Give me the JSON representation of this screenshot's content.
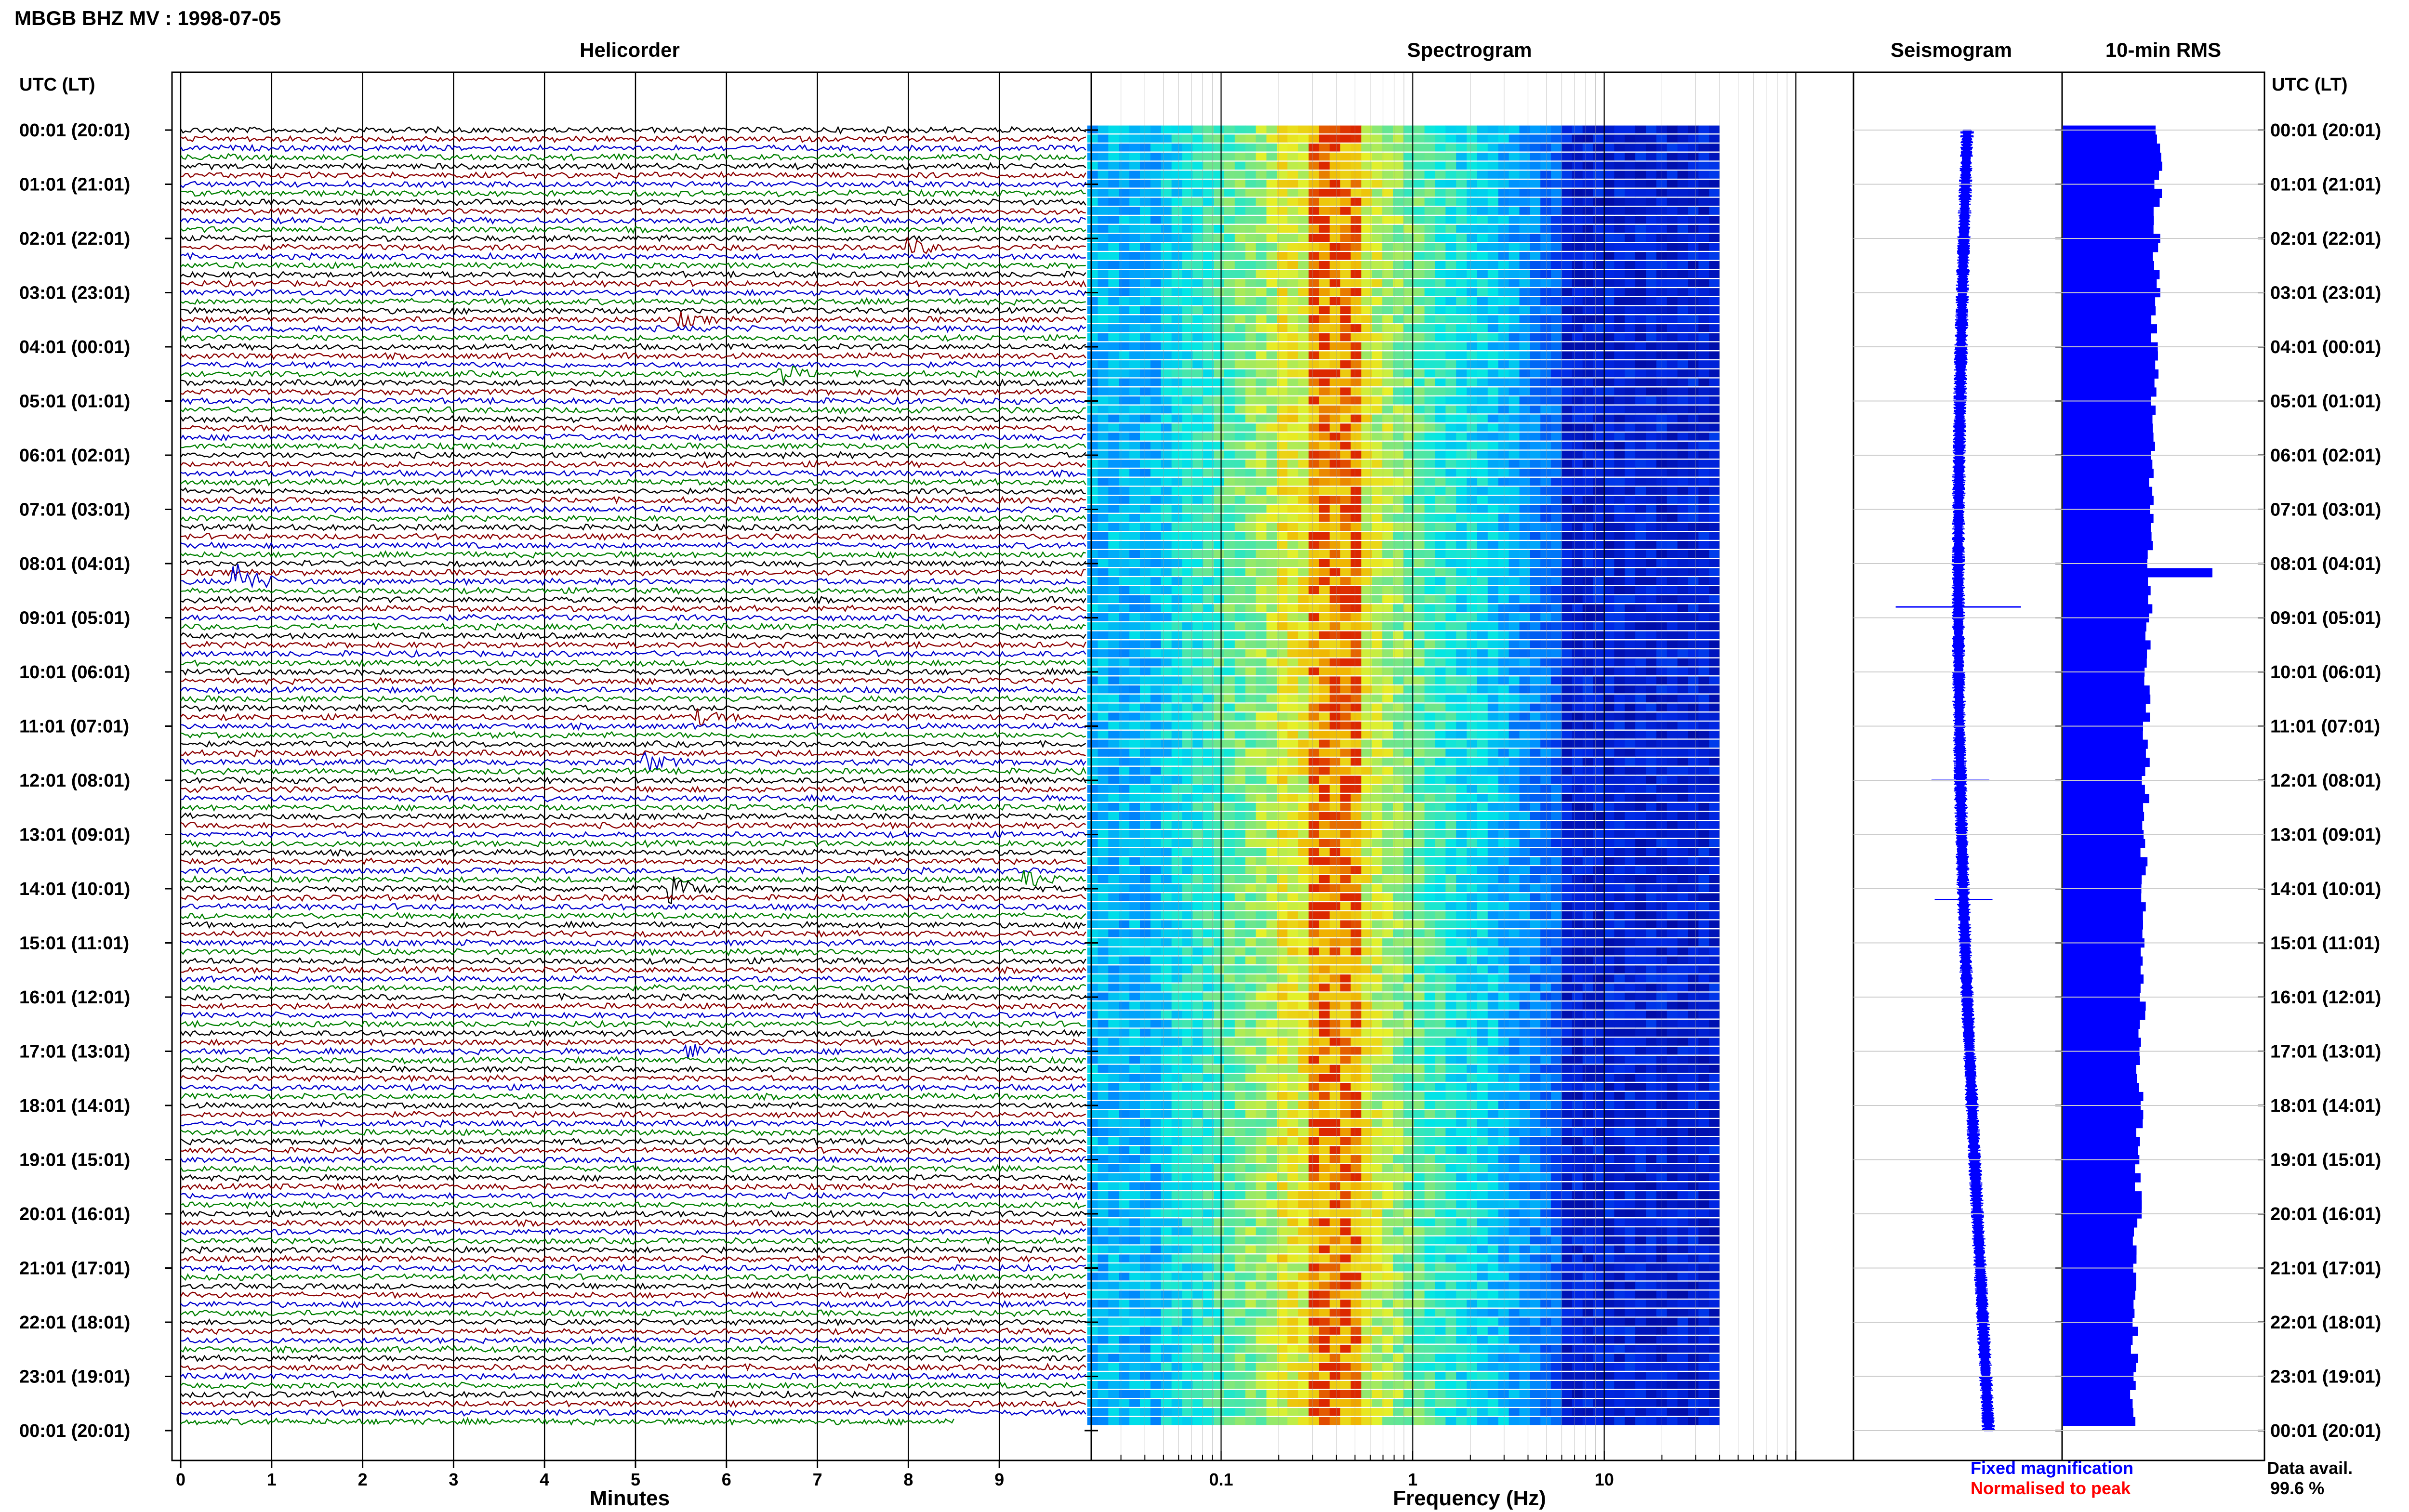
{
  "header": {
    "title": "MBGB BHZ MV : 1998-07-05",
    "utc_label_left": "UTC (LT)",
    "utc_label_right": "UTC (LT)"
  },
  "panels": {
    "helicorder_title": "Helicorder",
    "spectrogram_title": "Spectrogram",
    "seismogram_title": "Seismogram",
    "rms_title": "10-min RMS",
    "helicorder_xlabel": "Minutes",
    "spectrogram_xlabel": "Frequency (Hz)"
  },
  "legend": {
    "fixed": "Fixed magnification",
    "normalised": "Normalised to peak",
    "fixed_color": "#0000ff",
    "normalised_color": "#ff0000"
  },
  "availability": {
    "label": "Data avail.",
    "value": "99.6 %"
  },
  "colors": {
    "trace_cycle": [
      "#000000",
      "#8b0000",
      "#0000cd",
      "#008000"
    ],
    "seismogram": "#0000ff",
    "rms": "#0000ff"
  },
  "chart_data": [
    {
      "type": "line",
      "name": "helicorder",
      "x_unit": "minutes",
      "xlim": [
        0,
        10
      ],
      "x_ticks": [
        "0",
        "1",
        "2",
        "3",
        "4",
        "5",
        "6",
        "7",
        "8",
        "9"
      ],
      "rows_per_day": 144,
      "row_labels": [
        "00:01 (20:01)",
        "01:01 (21:01)",
        "02:01 (22:01)",
        "03:01 (23:01)",
        "04:01 (00:01)",
        "05:01 (01:01)",
        "06:01 (02:01)",
        "07:01 (03:01)",
        "08:01 (04:01)",
        "09:01 (05:01)",
        "10:01 (06:01)",
        "11:01 (07:01)",
        "12:01 (08:01)",
        "13:01 (09:01)",
        "14:01 (10:01)",
        "15:01 (11:01)",
        "16:01 (12:01)",
        "17:01 (13:01)",
        "18:01 (14:01)",
        "19:01 (15:01)",
        "20:01 (16:01)",
        "21:01 (17:01)",
        "22:01 (18:01)",
        "23:01 (19:01)",
        "00:01 (20:01)"
      ],
      "events": [
        {
          "row": 50,
          "minute": 0.6,
          "amplitude": 3.0
        },
        {
          "row": 13,
          "minute": 8.0,
          "amplitude": 1.2
        },
        {
          "row": 27,
          "minute": 6.6,
          "amplitude": 1.4
        },
        {
          "row": 84,
          "minute": 5.4,
          "amplitude": 1.8
        },
        {
          "row": 83,
          "minute": 9.3,
          "amplitude": 1.2
        },
        {
          "row": 70,
          "minute": 5.1,
          "amplitude": 1.4
        },
        {
          "row": 65,
          "minute": 5.7,
          "amplitude": 1.0
        },
        {
          "row": 102,
          "minute": 5.6,
          "amplitude": 1.0
        },
        {
          "row": 21,
          "minute": 5.5,
          "amplitude": 0.8
        }
      ]
    },
    {
      "type": "heatmap",
      "name": "spectrogram",
      "x_scale": "log",
      "xlim": [
        0.02,
        40
      ],
      "x_ticks": [
        "0.1",
        "1",
        "10"
      ],
      "x_tick_values": [
        0.1,
        1,
        10
      ],
      "rows": 144
    },
    {
      "type": "line",
      "name": "seismogram",
      "note_peaks_hour": [
        8.8,
        12.0,
        14.2
      ]
    },
    {
      "type": "bar",
      "name": "rms",
      "orientation": "horizontal",
      "bins": 144,
      "peak_bin": 49
    }
  ]
}
